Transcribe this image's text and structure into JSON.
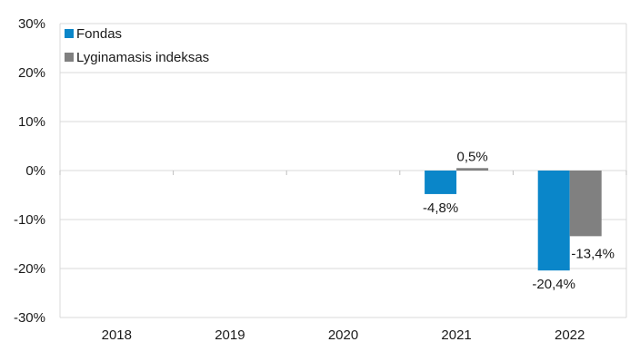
{
  "chart_data": {
    "type": "bar",
    "categories": [
      "2018",
      "2019",
      "2020",
      "2021",
      "2022"
    ],
    "series": [
      {
        "name": "Fondas",
        "color": "#0a86c9",
        "values": [
          null,
          null,
          null,
          -4.8,
          -20.4
        ],
        "labels": [
          null,
          null,
          null,
          "-4,8%",
          "-20,4%"
        ]
      },
      {
        "name": "Lyginamasis indeksas",
        "color": "#808080",
        "values": [
          null,
          null,
          null,
          0.5,
          -13.4
        ],
        "labels": [
          null,
          null,
          null,
          "0,5%",
          "-13,4%"
        ]
      }
    ],
    "ylim": [
      -30,
      30
    ],
    "yticks": [
      30,
      20,
      10,
      0,
      -10,
      -20,
      -30
    ],
    "ytick_labels": [
      "30%",
      "20%",
      "10%",
      "0%",
      "-10%",
      "-20%",
      "-30%"
    ],
    "grid": true,
    "legend_position": "top-left",
    "title": "",
    "xlabel": "",
    "ylabel": ""
  }
}
